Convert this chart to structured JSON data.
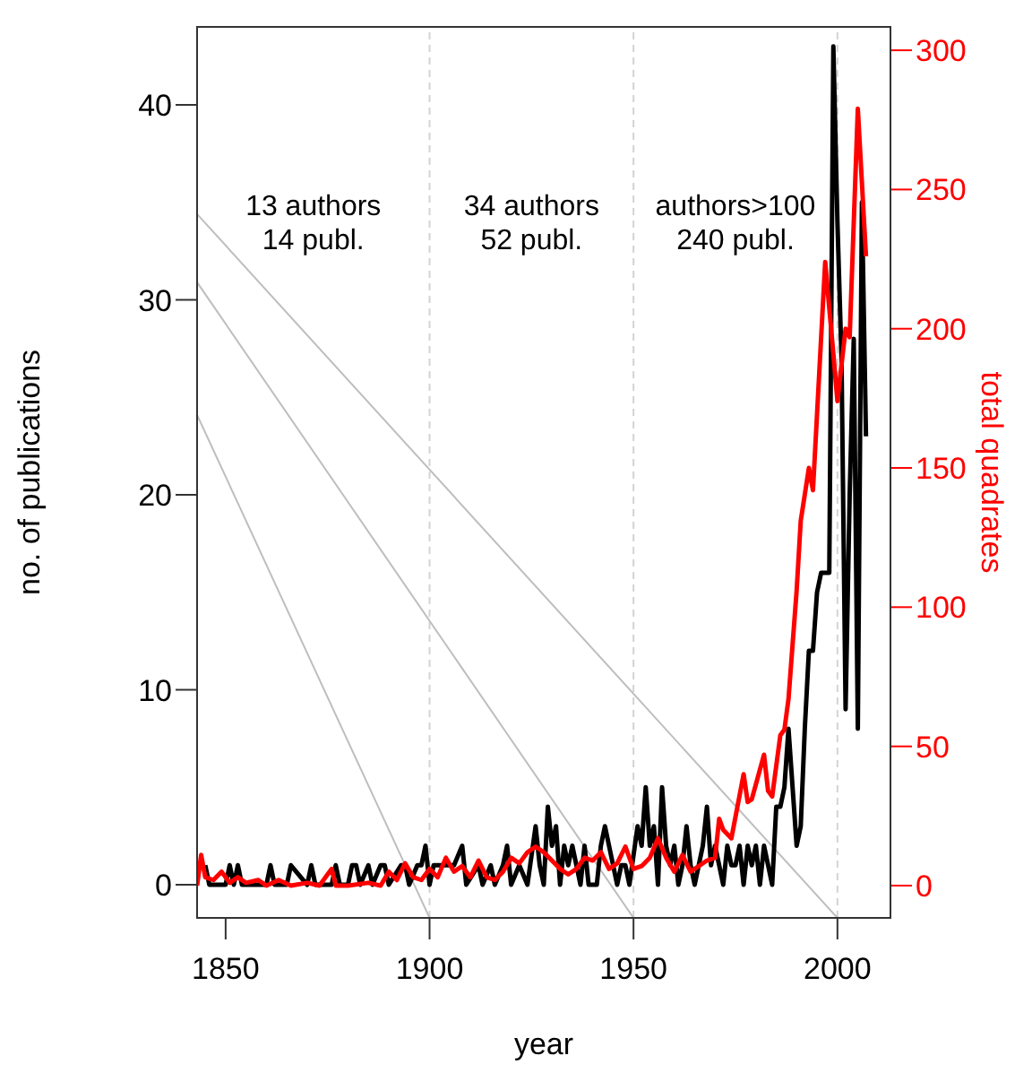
{
  "chart_data": {
    "type": "line",
    "xlabel": "year",
    "ylabel": "no. of publications",
    "y2label": "total quadrates",
    "xlim": [
      1843,
      2013
    ],
    "xticks": [
      1850,
      1900,
      1950,
      2000
    ],
    "ylim": [
      -1.7,
      44
    ],
    "yticks": [
      0,
      10,
      20,
      30,
      40
    ],
    "y2lim": [
      -11.6,
      308.4
    ],
    "y2ticks": [
      0,
      50,
      100,
      150,
      200,
      250,
      300
    ],
    "annotations": [
      "13 authors\n14 publ.",
      "34 authors\n52 publ.",
      "authors>100\n240 publ."
    ],
    "ref_lines": [
      {
        "axis": "x",
        "value": 1900,
        "color": "#d3d3d3",
        "line_style": "dashed"
      },
      {
        "axis": "x",
        "value": 1950,
        "color": "#d3d3d3",
        "line_style": "dashed"
      },
      {
        "axis": "x",
        "value": 2000,
        "color": "#d3d3d3",
        "line_style": "dashed"
      }
    ],
    "series": [
      {
        "color": "#bebebe",
        "x": [
          1843,
          1900
        ],
        "values": [
          24.1,
          -1.7
        ]
      },
      {
        "color": "#bebebe",
        "x": [
          1843,
          1950
        ],
        "values": [
          30.9,
          -1.7
        ]
      },
      {
        "color": "#bebebe",
        "x": [
          1843,
          2000
        ],
        "values": [
          34.4,
          -1.7
        ]
      },
      {
        "color": "#000000",
        "x": [
          1845,
          1846,
          1850,
          1851,
          1852,
          1853,
          1854,
          1860,
          1861,
          1862,
          1865,
          1866,
          1870,
          1871,
          1872,
          1876,
          1877,
          1878,
          1880,
          1881,
          1882,
          1883,
          1885,
          1886,
          1888,
          1889,
          1890,
          1893,
          1894,
          1895,
          1897,
          1898,
          1899,
          1900,
          1901,
          1902,
          1905,
          1906,
          1908,
          1909,
          1912,
          1913,
          1915,
          1916,
          1918,
          1919,
          1920,
          1922,
          1924,
          1926,
          1927,
          1928,
          1929,
          1930,
          1931,
          1932,
          1933,
          1934,
          1935,
          1936,
          1937,
          1938,
          1939,
          1941,
          1942,
          1943,
          1944,
          1945,
          1946,
          1947,
          1948,
          1949,
          1951,
          1952,
          1953,
          1954,
          1955,
          1956,
          1957,
          1958,
          1959,
          1960,
          1961,
          1962,
          1963,
          1964,
          1965,
          1966,
          1967,
          1968,
          1969,
          1970,
          1971,
          1972,
          1973,
          1974,
          1975,
          1976,
          1977,
          1978,
          1979,
          1980,
          1981,
          1982,
          1983,
          1984,
          1985,
          1986,
          1987,
          1988,
          1989,
          1990,
          1991,
          1992,
          1993,
          1994,
          1995,
          1996,
          1997,
          1998,
          1999,
          2000,
          2001,
          2002,
          2003,
          2004,
          2005,
          2006,
          2007
        ],
        "values": [
          1,
          0,
          0,
          1,
          0,
          1,
          0,
          0,
          1,
          0,
          0,
          1,
          0,
          1,
          0,
          0,
          1,
          0,
          0,
          1,
          1,
          0,
          1,
          0,
          1,
          1,
          0,
          1,
          1,
          0,
          1,
          1,
          2,
          0,
          1,
          1,
          1,
          1,
          2,
          0,
          1,
          0,
          1,
          0,
          1,
          2,
          0,
          1,
          0,
          3,
          1,
          0,
          4,
          2,
          3,
          0,
          2,
          1,
          2,
          1,
          0,
          2,
          0,
          0,
          2,
          3,
          2,
          1,
          0,
          1,
          1,
          0,
          3,
          2,
          5,
          2,
          3,
          0,
          5,
          2,
          1,
          2,
          0,
          1,
          3,
          1,
          0,
          1,
          2,
          4,
          1,
          2,
          1,
          0,
          2,
          1,
          1,
          2,
          0,
          2,
          1,
          2,
          0,
          2,
          1,
          0,
          4,
          4,
          5,
          8,
          5,
          2,
          3,
          8,
          12,
          12,
          15,
          16,
          16,
          16,
          43,
          34,
          27,
          9,
          20,
          28,
          8,
          35,
          23
        ]
      },
      {
        "color": "#ff0000",
        "axis": "y2",
        "x": [
          1843,
          1844,
          1845,
          1847,
          1849,
          1851,
          1853,
          1855,
          1858,
          1860,
          1863,
          1866,
          1870,
          1873,
          1876,
          1877,
          1880,
          1885,
          1888,
          1890,
          1892,
          1894,
          1896,
          1898,
          1900,
          1902,
          1904,
          1906,
          1908,
          1910,
          1912,
          1914,
          1916,
          1918,
          1920,
          1922,
          1924,
          1926,
          1928,
          1930,
          1932,
          1934,
          1936,
          1938,
          1940,
          1942,
          1944,
          1946,
          1948,
          1950,
          1952,
          1954,
          1956,
          1958,
          1960,
          1962,
          1964,
          1966,
          1968,
          1970,
          1971,
          1972,
          1974,
          1977,
          1978,
          1979,
          1982,
          1983,
          1984,
          1986,
          1987,
          1988,
          1990,
          1991,
          1993,
          1994,
          1997,
          1999,
          2000,
          2002,
          2003,
          2005,
          2007
        ],
        "values": [
          0,
          11,
          3,
          2,
          5,
          1,
          3,
          1,
          2,
          0,
          2,
          0,
          1,
          0,
          6,
          0,
          0,
          1,
          0,
          5,
          2,
          8,
          3,
          2,
          6,
          3,
          10,
          5,
          7,
          3,
          9,
          3,
          2,
          5,
          10,
          8,
          12,
          14,
          12,
          9,
          6,
          4,
          6,
          10,
          9,
          12,
          6,
          8,
          14,
          6,
          7,
          10,
          17,
          10,
          5,
          11,
          5,
          7,
          9,
          10,
          24,
          20,
          17,
          40,
          30,
          31,
          47,
          34,
          32,
          54,
          56,
          67,
          106,
          131,
          150,
          142,
          224,
          191,
          174,
          200,
          197,
          279,
          226
        ]
      }
    ]
  }
}
